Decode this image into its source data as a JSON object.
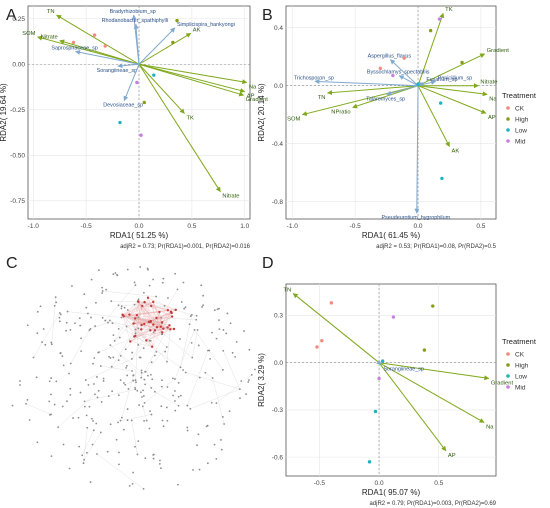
{
  "colors": {
    "CK": "#f08b7e",
    "High": "#8a9a1e",
    "Low": "#1fb3c2",
    "Mid": "#c77fe0",
    "env_arrow": "#7fa81a",
    "species_arrow": "#7fa9cf",
    "env_text": "#2f5a0c",
    "species_text": "#2a4f86",
    "panel_bg": "#ffffff",
    "grid": "#e6e6e6",
    "network_gray": "#8c8c8c",
    "network_red": "#c43c3c"
  },
  "chart_data": [
    {
      "panel": "A",
      "type": "scatter",
      "xlabel": "RDA1( 51.25 %)",
      "ylabel": "RDA2( 19.64 %)",
      "caption": "adjR2 = 0.73; Pr(RDA1)=0.001, Pr(RDA2)=0.016",
      "xlim": [
        -1.05,
        1.05
      ],
      "ylim": [
        -0.85,
        0.32
      ],
      "xticks": [
        "-1.0",
        "-0.5",
        "0.0",
        "0.5",
        "1.0"
      ],
      "xtick_values": [
        -1.0,
        -0.5,
        0.0,
        0.5,
        1.0
      ],
      "yticks": [
        "0.25",
        "0.00",
        "-0.25",
        "-0.50",
        "-0.75"
      ],
      "ytick_values": [
        0.25,
        0.0,
        -0.25,
        -0.5,
        -0.75
      ],
      "env_arrows": [
        {
          "label": "TN",
          "x": -0.78,
          "y": 0.27
        },
        {
          "label": "SOM",
          "x": -0.96,
          "y": 0.15
        },
        {
          "label": "Nitrate",
          "x": -0.75,
          "y": 0.13
        },
        {
          "label": "AK",
          "x": 0.49,
          "y": 0.17
        },
        {
          "label": "Na",
          "x": 1.02,
          "y": -0.1
        },
        {
          "label": "AP",
          "x": 1.0,
          "y": -0.15
        },
        {
          "label": "Gradient",
          "x": 0.99,
          "y": -0.17
        },
        {
          "label": "TK",
          "x": 0.43,
          "y": -0.27
        },
        {
          "label": "Nitrate",
          "x": 0.77,
          "y": -0.7
        }
      ],
      "species_arrows": [
        {
          "label": "Bradyrhizobium_sp",
          "x": -0.05,
          "y": 0.27
        },
        {
          "label": "Rhodanobacter_spathiphylli",
          "x": -0.03,
          "y": 0.22
        },
        {
          "label": "Simplicispira_hankyongi",
          "x": 0.34,
          "y": 0.2
        },
        {
          "label": "Saprospiraceae_sp",
          "x": -0.6,
          "y": 0.07
        },
        {
          "label": "Sorangiineae_sp",
          "x": -0.2,
          "y": -0.01
        },
        {
          "label": "Devosiaceae_sp",
          "x": -0.14,
          "y": -0.2
        }
      ],
      "samples": [
        {
          "group": "CK",
          "x": -0.42,
          "y": 0.16
        },
        {
          "group": "CK",
          "x": -0.62,
          "y": 0.12
        },
        {
          "group": "CK",
          "x": -0.32,
          "y": 0.1
        },
        {
          "group": "High",
          "x": 0.36,
          "y": 0.24
        },
        {
          "group": "High",
          "x": 0.32,
          "y": 0.12
        },
        {
          "group": "High",
          "x": 0.05,
          "y": -0.21
        },
        {
          "group": "Low",
          "x": 0.14,
          "y": -0.06
        },
        {
          "group": "Low",
          "x": -0.18,
          "y": -0.32
        },
        {
          "group": "Mid",
          "x": 0.02,
          "y": -0.39
        },
        {
          "group": "Mid",
          "x": -0.02,
          "y": -0.1
        }
      ]
    },
    {
      "panel": "B",
      "type": "scatter",
      "xlabel": "RDA1( 61.45 %)",
      "ylabel": "RDA2( 20.14 %)",
      "caption": "adjR2 = 0.53; Pr(RDA1)=0.08, Pr(RDA2)=0.5",
      "xlim": [
        -1.05,
        0.62
      ],
      "ylim": [
        -0.92,
        0.55
      ],
      "xticks": [
        "-1.0",
        "-0.5",
        "0.0",
        "0.5"
      ],
      "xtick_values": [
        -1.0,
        -0.5,
        0.0,
        0.5
      ],
      "yticks": [
        "0.4",
        "0.0",
        "-0.4",
        "-0.8"
      ],
      "ytick_values": [
        0.4,
        0.0,
        -0.4,
        -0.8
      ],
      "env_arrows": [
        {
          "label": "TK",
          "x": 0.2,
          "y": 0.5
        },
        {
          "label": "Gradient",
          "x": 0.53,
          "y": 0.22
        },
        {
          "label": "Nitrate",
          "x": 0.48,
          "y": 0.0
        },
        {
          "label": "Na",
          "x": 0.55,
          "y": -0.06
        },
        {
          "label": "AP",
          "x": 0.54,
          "y": -0.19
        },
        {
          "label": "AK",
          "x": 0.25,
          "y": -0.42
        },
        {
          "label": "TN",
          "x": -0.72,
          "y": -0.05
        },
        {
          "label": "SOM",
          "x": -0.92,
          "y": -0.2
        },
        {
          "label": "NPratio",
          "x": -0.52,
          "y": -0.15
        }
      ],
      "species_arrows": [
        {
          "label": "Aspergillus_flavus",
          "x": -0.22,
          "y": 0.18
        },
        {
          "label": "Byssochlamys_spectabilis",
          "x": -0.15,
          "y": 0.07
        },
        {
          "label": "Penicillium_sp",
          "x": 0.14,
          "y": 0.03
        },
        {
          "label": "Trichosporon_sp",
          "x": -0.82,
          "y": 0.03
        },
        {
          "label": "Fusarium_sp",
          "x": 0.05,
          "y": 0.02
        },
        {
          "label": "Talaromyces_sp",
          "x": -0.25,
          "y": -0.06
        },
        {
          "label": "Pseudeurotium_hygrophilum",
          "x": -0.01,
          "y": -0.88
        }
      ],
      "samples": [
        {
          "group": "CK",
          "x": -0.11,
          "y": 0.19
        },
        {
          "group": "CK",
          "x": -0.3,
          "y": 0.12
        },
        {
          "group": "High",
          "x": 0.1,
          "y": 0.38
        },
        {
          "group": "High",
          "x": 0.35,
          "y": 0.16
        },
        {
          "group": "Low",
          "x": 0.18,
          "y": -0.12
        },
        {
          "group": "Low",
          "x": 0.19,
          "y": -0.64
        },
        {
          "group": "Low",
          "x": 0.0,
          "y": 0.01
        },
        {
          "group": "Mid",
          "x": 0.17,
          "y": 0.46
        },
        {
          "group": "Mid",
          "x": -0.2,
          "y": 0.07
        }
      ]
    },
    {
      "panel": "D",
      "type": "scatter",
      "xlabel": "RDA1( 95.07 %)",
      "ylabel": "RDA2( 3.29 %)",
      "caption": "adjR2 = 0.79; Pr(RDA1)=0.003, Pr(RDA2)=0.69",
      "xlim": [
        -0.78,
        0.98
      ],
      "ylim": [
        -0.72,
        0.5
      ],
      "xticks": [
        "-0.5",
        "0.0",
        "0.5"
      ],
      "xtick_values": [
        -0.5,
        0.0,
        0.5
      ],
      "yticks": [
        "0.3",
        "0.0",
        "-0.3",
        "-0.6"
      ],
      "ytick_values": [
        0.3,
        0.0,
        -0.3,
        -0.6
      ],
      "env_arrows": [
        {
          "label": "TN",
          "x": -0.72,
          "y": 0.44
        },
        {
          "label": "Gradient",
          "x": 0.92,
          "y": -0.1
        },
        {
          "label": "Na",
          "x": 0.88,
          "y": -0.38
        },
        {
          "label": "AP",
          "x": 0.56,
          "y": -0.56
        }
      ],
      "species_arrows": [
        {
          "label": "Sorangiineae_sp",
          "x": 0.02,
          "y": -0.01
        }
      ],
      "samples": [
        {
          "group": "CK",
          "x": -0.48,
          "y": 0.14
        },
        {
          "group": "CK",
          "x": -0.52,
          "y": 0.1
        },
        {
          "group": "CK",
          "x": -0.4,
          "y": 0.38
        },
        {
          "group": "High",
          "x": 0.45,
          "y": 0.36
        },
        {
          "group": "High",
          "x": 0.38,
          "y": 0.08
        },
        {
          "group": "Low",
          "x": 0.03,
          "y": 0.01
        },
        {
          "group": "Low",
          "x": -0.03,
          "y": -0.31
        },
        {
          "group": "Low",
          "x": -0.08,
          "y": -0.63
        },
        {
          "group": "Mid",
          "x": 0.12,
          "y": 0.29
        },
        {
          "group": "Mid",
          "x": 0.0,
          "y": -0.1
        }
      ]
    }
  ],
  "panels": {
    "A": "A",
    "B": "B",
    "C": "C",
    "D": "D"
  },
  "legend": {
    "title": "Treatment",
    "items": [
      "CK",
      "High",
      "Low",
      "Mid"
    ]
  },
  "network": {
    "panel": "C",
    "node_count": 340,
    "red_cluster_nodes": 45
  }
}
